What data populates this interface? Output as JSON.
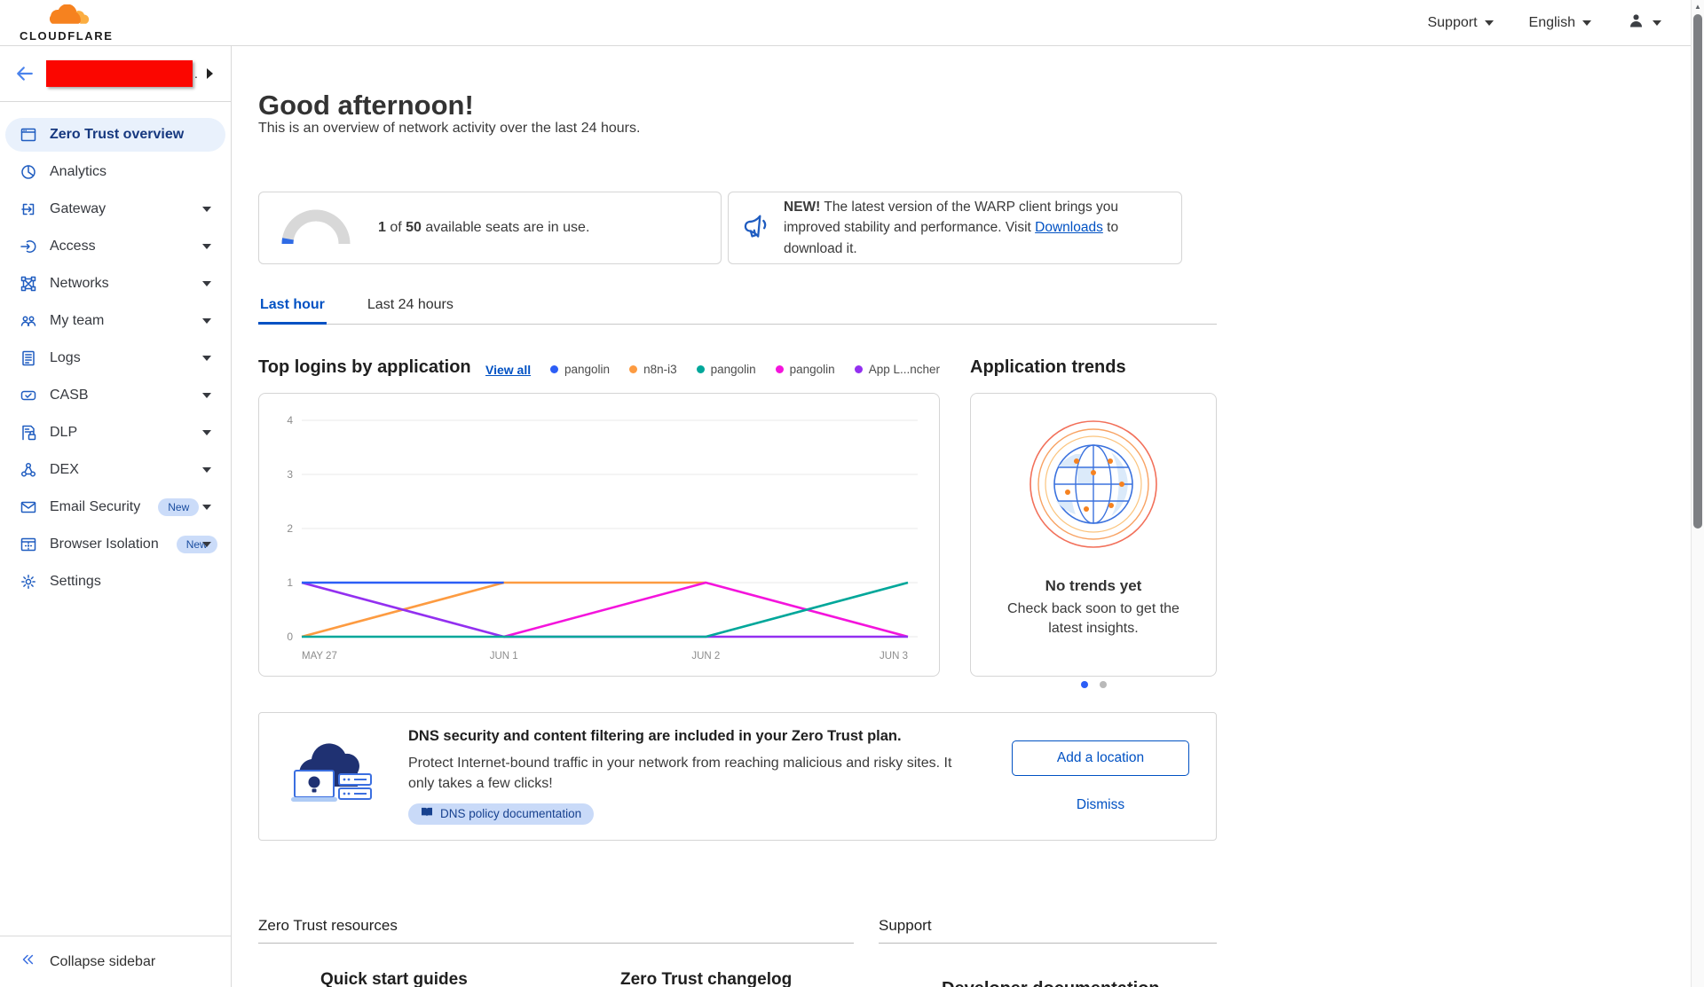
{
  "topbar": {
    "brand": "CLOUDFLARE",
    "support": "Support",
    "language": "English"
  },
  "sidebar": {
    "account_suffix": ".",
    "collapse": "Collapse sidebar",
    "items": [
      {
        "label": "Zero Trust overview",
        "icon": "overview-icon",
        "active": true
      },
      {
        "label": "Analytics",
        "icon": "analytics-icon"
      },
      {
        "label": "Gateway",
        "icon": "gateway-icon",
        "caret": true
      },
      {
        "label": "Access",
        "icon": "access-icon",
        "caret": true
      },
      {
        "label": "Networks",
        "icon": "networks-icon",
        "caret": true
      },
      {
        "label": "My team",
        "icon": "team-icon",
        "caret": true
      },
      {
        "label": "Logs",
        "icon": "logs-icon",
        "caret": true
      },
      {
        "label": "CASB",
        "icon": "casb-icon",
        "caret": true
      },
      {
        "label": "DLP",
        "icon": "dlp-icon",
        "caret": true
      },
      {
        "label": "DEX",
        "icon": "dex-icon",
        "caret": true
      },
      {
        "label": "Email Security",
        "icon": "email-security-icon",
        "badge": "New",
        "caret": true
      },
      {
        "label": "Browser Isolation",
        "icon": "browser-isolation-icon",
        "badge": "New",
        "caret": true
      },
      {
        "label": "Settings",
        "icon": "settings-icon"
      }
    ]
  },
  "greeting": {
    "title": "Good afternoon!",
    "subtitle": "This is an overview of network activity over the last 24 hours."
  },
  "seats": {
    "used": "1",
    "of": " of ",
    "total": "50",
    "rest": " available seats are in use."
  },
  "warp": {
    "badge": "NEW!",
    "before": " The latest version of the WARP client brings you improved stability and performance. Visit ",
    "link": "Downloads",
    "after": " to download it."
  },
  "tabs": [
    {
      "label": "Last hour",
      "active": true
    },
    {
      "label": "Last 24 hours",
      "active": false
    }
  ],
  "top_logins": {
    "title": "Top logins by application",
    "view_all": "View all"
  },
  "chart_data": {
    "type": "line",
    "x": [
      "MAY 27",
      "JUN 1",
      "JUN 2",
      "JUN 3"
    ],
    "yticks": [
      0,
      1,
      2,
      3,
      4
    ],
    "ylim": [
      0,
      4
    ],
    "grid": true,
    "legend_position": "top-right-outside",
    "series": [
      {
        "name": "pangolin",
        "color": "#2c5ef6",
        "values": [
          1,
          1,
          null,
          null
        ]
      },
      {
        "name": "n8n-i3",
        "color": "#fd9b41",
        "values": [
          0,
          1,
          1,
          null
        ]
      },
      {
        "name": "pangolin",
        "color": "#00a79a",
        "values": [
          0,
          0,
          0,
          1
        ]
      },
      {
        "name": "pangolin",
        "color": "#f414dc",
        "values": [
          null,
          0,
          1,
          0
        ]
      },
      {
        "name": "App L...ncher",
        "color": "#9330f0",
        "values": [
          1,
          0,
          0,
          0
        ]
      }
    ]
  },
  "trends": {
    "title": "Application trends",
    "empty_title": "No trends yet",
    "empty_text": "Check back soon to get the latest insights.",
    "dots_total": 2,
    "active_dot": 0
  },
  "dns": {
    "title": "DNS security and content filtering are included in your Zero Trust plan.",
    "body": "Protect Internet-bound traffic in your network from reaching malicious and risky sites. It only takes a few clicks!",
    "doc": "DNS policy documentation",
    "add": "Add a location",
    "dismiss": "Dismiss"
  },
  "footer": {
    "resources_title": "Zero Trust resources",
    "support_title": "Support",
    "quick_start": "Quick start guides",
    "changelog": "Zero Trust changelog",
    "dev_docs": "Developer documentation"
  },
  "colors": {
    "accent_blue": "#0051c3",
    "brand_orange": "#f6821f",
    "redaction": "#fb0600"
  }
}
